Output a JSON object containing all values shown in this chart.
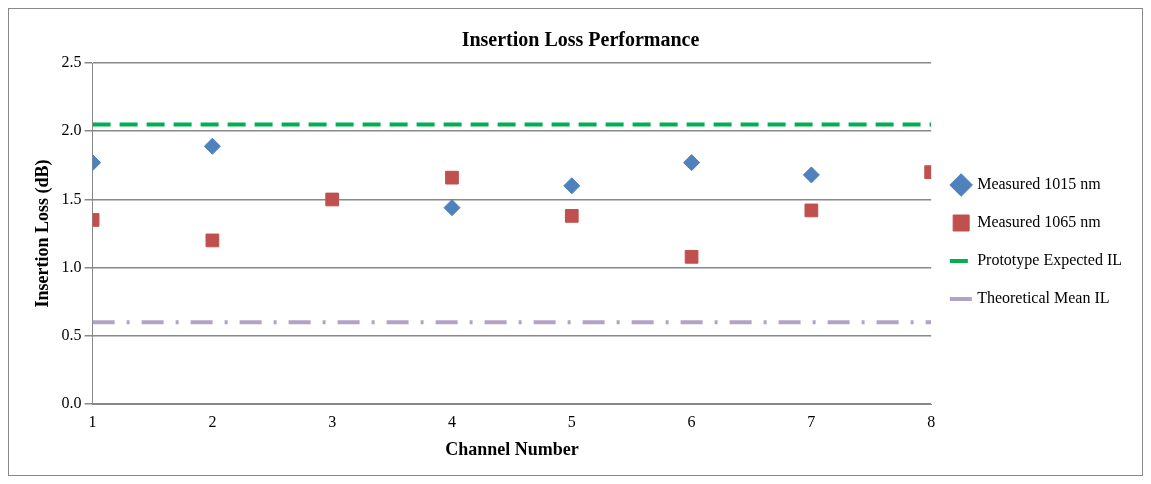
{
  "chart_data": {
    "type": "scatter",
    "title": "Insertion Loss Performance",
    "xlabel": "Channel Number",
    "ylabel": "Insertion Loss (dB)",
    "x": [
      1,
      2,
      3,
      4,
      5,
      6,
      7,
      8
    ],
    "xlim": [
      1,
      8
    ],
    "xticks": [
      1,
      2,
      3,
      4,
      5,
      6,
      7,
      8
    ],
    "ylim": [
      0,
      2.5
    ],
    "yticks": [
      {
        "value": 0,
        "label": "0.0"
      },
      0.5,
      {
        "value": 1,
        "label": "1.0"
      },
      1.5,
      {
        "value": 2,
        "label": "2.0"
      },
      2.5
    ],
    "grid": "y",
    "legend": "right",
    "series": [
      {
        "name": "Measured 1015 nm",
        "color": "#4f81bd",
        "marker": "diamond",
        "values": [
          1.77,
          1.89,
          null,
          1.44,
          1.6,
          1.77,
          1.68,
          null
        ]
      },
      {
        "name": "Measured 1065 nm",
        "color": "#c0504d",
        "marker": "square",
        "values": [
          1.35,
          1.2,
          1.5,
          1.66,
          1.38,
          1.08,
          1.42,
          1.7
        ]
      },
      {
        "name": "Prototype Expected IL",
        "type": "line",
        "color": "#00b050",
        "line_style": "dashed",
        "marker": "none",
        "values": [
          2.05,
          2.05,
          2.05,
          2.05,
          2.05,
          2.05,
          2.05,
          2.05
        ]
      },
      {
        "name": "Theoretical Mean IL",
        "type": "line",
        "color": "#b3a2c7",
        "line_style": "dotted",
        "marker": "none",
        "values": [
          0.6,
          0.6,
          0.6,
          0.6,
          0.6,
          0.6,
          0.6,
          0.6
        ]
      }
    ]
  }
}
